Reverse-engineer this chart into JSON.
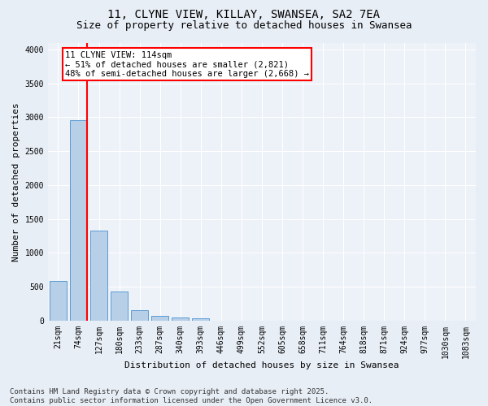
{
  "title1": "11, CLYNE VIEW, KILLAY, SWANSEA, SA2 7EA",
  "title2": "Size of property relative to detached houses in Swansea",
  "xlabel": "Distribution of detached houses by size in Swansea",
  "ylabel": "Number of detached properties",
  "categories": [
    "21sqm",
    "74sqm",
    "127sqm",
    "180sqm",
    "233sqm",
    "287sqm",
    "340sqm",
    "393sqm",
    "446sqm",
    "499sqm",
    "552sqm",
    "605sqm",
    "658sqm",
    "711sqm",
    "764sqm",
    "818sqm",
    "871sqm",
    "924sqm",
    "977sqm",
    "1030sqm",
    "1083sqm"
  ],
  "values": [
    580,
    2960,
    1330,
    430,
    155,
    75,
    48,
    35,
    0,
    0,
    0,
    0,
    0,
    0,
    0,
    0,
    0,
    0,
    0,
    0,
    0
  ],
  "bar_color": "#b8cfe8",
  "bar_edge_color": "#5b9bd5",
  "vline_color": "red",
  "vline_x": 1.4,
  "annotation_text": "11 CLYNE VIEW: 114sqm\n← 51% of detached houses are smaller (2,821)\n48% of semi-detached houses are larger (2,668) →",
  "ylim": [
    0,
    4100
  ],
  "yticks": [
    0,
    500,
    1000,
    1500,
    2000,
    2500,
    3000,
    3500,
    4000
  ],
  "footer": "Contains HM Land Registry data © Crown copyright and database right 2025.\nContains public sector information licensed under the Open Government Licence v3.0.",
  "bg_color": "#e8eef6",
  "plot_bg_color": "#edf1f8",
  "grid_color": "#ffffff",
  "title_fontsize": 10,
  "subtitle_fontsize": 9,
  "axis_label_fontsize": 8,
  "tick_fontsize": 7,
  "annotation_fontsize": 7.5,
  "footer_fontsize": 6.5
}
